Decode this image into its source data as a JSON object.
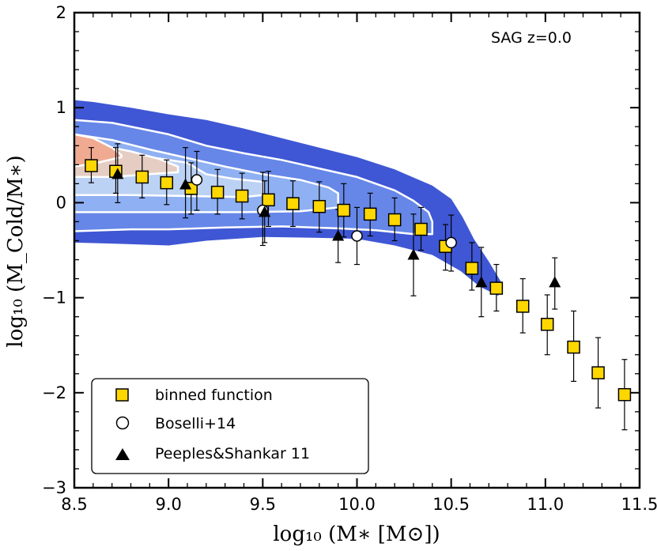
{
  "chart_data": {
    "type": "scatter",
    "annotation": "SAG z=0.0",
    "xlabel": "log₁₀ (M∗ [M⊙])",
    "ylabel": "log₁₀ (M_Cold/M∗)",
    "xlim": [
      8.5,
      11.5
    ],
    "ylim": [
      -3,
      2
    ],
    "x_ticks": [
      "8.5",
      "9.0",
      "9.5",
      "10.0",
      "10.5",
      "11.0",
      "11.5"
    ],
    "y_ticks": [
      "−3",
      "−2",
      "−1",
      "0",
      "1",
      "2"
    ],
    "legend_position": "lower-left",
    "series": [
      {
        "name": "binned function",
        "marker": "square",
        "color": "#ffd700",
        "points": [
          {
            "x": 8.59,
            "y": 0.39,
            "lo": 0.21,
            "hi": 0.58
          },
          {
            "x": 8.72,
            "y": 0.33,
            "lo": 0.1,
            "hi": 0.58
          },
          {
            "x": 8.86,
            "y": 0.27,
            "lo": 0.05,
            "hi": 0.5
          },
          {
            "x": 8.99,
            "y": 0.21,
            "lo": -0.02,
            "hi": 0.45
          },
          {
            "x": 9.12,
            "y": 0.15,
            "lo": -0.12,
            "hi": 0.42
          },
          {
            "x": 9.26,
            "y": 0.11,
            "lo": -0.12,
            "hi": 0.35
          },
          {
            "x": 9.39,
            "y": 0.07,
            "lo": -0.17,
            "hi": 0.31
          },
          {
            "x": 9.53,
            "y": 0.03,
            "lo": -0.25,
            "hi": 0.33
          },
          {
            "x": 9.66,
            "y": -0.01,
            "lo": -0.25,
            "hi": 0.23
          },
          {
            "x": 9.8,
            "y": -0.04,
            "lo": -0.31,
            "hi": 0.22
          },
          {
            "x": 9.93,
            "y": -0.08,
            "lo": -0.36,
            "hi": 0.2
          },
          {
            "x": 10.07,
            "y": -0.12,
            "lo": -0.35,
            "hi": 0.1
          },
          {
            "x": 10.2,
            "y": -0.18,
            "lo": -0.4,
            "hi": 0.05
          },
          {
            "x": 10.34,
            "y": -0.28,
            "lo": -0.5,
            "hi": -0.05
          },
          {
            "x": 10.47,
            "y": -0.46,
            "lo": -0.71,
            "hi": -0.23
          },
          {
            "x": 10.61,
            "y": -0.69,
            "lo": -0.92,
            "hi": -0.42
          },
          {
            "x": 10.74,
            "y": -0.9,
            "lo": -1.14,
            "hi": -0.65
          },
          {
            "x": 10.88,
            "y": -1.09,
            "lo": -1.37,
            "hi": -0.8
          },
          {
            "x": 11.01,
            "y": -1.28,
            "lo": -1.6,
            "hi": -0.97
          },
          {
            "x": 11.15,
            "y": -1.52,
            "lo": -1.88,
            "hi": -1.14
          },
          {
            "x": 11.28,
            "y": -1.79,
            "lo": -2.16,
            "hi": -1.42
          },
          {
            "x": 11.42,
            "y": -2.02,
            "lo": -2.39,
            "hi": -1.65
          }
        ]
      },
      {
        "name": "Boselli+14",
        "marker": "circle",
        "color": "#ffffff",
        "points": [
          {
            "x": 9.15,
            "y": 0.24,
            "lo": -0.08,
            "hi": 0.54
          },
          {
            "x": 9.5,
            "y": -0.08,
            "lo": -0.45,
            "hi": 0.32
          },
          {
            "x": 10.0,
            "y": -0.35,
            "lo": -0.65,
            "hi": -0.05
          },
          {
            "x": 10.5,
            "y": -0.42,
            "lo": -0.72,
            "hi": -0.13
          }
        ]
      },
      {
        "name": "Peeples&Shankar 11",
        "marker": "triangle",
        "color": "#000000",
        "points": [
          {
            "x": 8.73,
            "y": 0.3,
            "lo": 0.0,
            "hi": 0.62
          },
          {
            "x": 9.09,
            "y": 0.19,
            "lo": -0.16,
            "hi": 0.58
          },
          {
            "x": 9.51,
            "y": -0.1,
            "lo": -0.42,
            "hi": 0.23
          },
          {
            "x": 9.9,
            "y": -0.35,
            "lo": -0.63,
            "hi": -0.07
          },
          {
            "x": 10.3,
            "y": -0.55,
            "lo": -0.98,
            "hi": -0.12
          },
          {
            "x": 10.66,
            "y": -0.84,
            "lo": -1.2,
            "hi": -0.47
          },
          {
            "x": 11.05,
            "y": -0.84,
            "lo": -1.12,
            "hi": -0.58
          }
        ]
      }
    ],
    "contours": {
      "colors": [
        "#3f57d4",
        "#6687e8",
        "#8fb0f2",
        "#bcd2f4",
        "#e6cdc4",
        "#f0aa92"
      ],
      "lines_color": "#ffffff",
      "bands": [
        {
          "level": 1,
          "upper": [
            [
              8.5,
              1.08
            ],
            [
              8.6,
              1.06
            ],
            [
              8.8,
              1.0
            ],
            [
              9.0,
              0.93
            ],
            [
              9.2,
              0.87
            ],
            [
              9.4,
              0.78
            ],
            [
              9.6,
              0.68
            ],
            [
              9.8,
              0.58
            ],
            [
              10.0,
              0.48
            ],
            [
              10.2,
              0.35
            ],
            [
              10.4,
              0.18
            ],
            [
              10.5,
              0.04
            ],
            [
              10.56,
              -0.15
            ],
            [
              10.62,
              -0.38
            ],
            [
              10.7,
              -0.62
            ],
            [
              10.77,
              -0.85
            ]
          ],
          "lower": [
            [
              8.5,
              -0.42
            ],
            [
              8.7,
              -0.43
            ],
            [
              9.0,
              -0.45
            ],
            [
              9.2,
              -0.4
            ],
            [
              9.5,
              -0.36
            ],
            [
              9.8,
              -0.37
            ],
            [
              10.0,
              -0.38
            ],
            [
              10.2,
              -0.45
            ],
            [
              10.4,
              -0.55
            ],
            [
              10.55,
              -0.72
            ],
            [
              10.65,
              -0.88
            ],
            [
              10.75,
              -0.98
            ]
          ]
        },
        {
          "level": 2,
          "upper": [
            [
              8.5,
              0.87
            ],
            [
              8.7,
              0.84
            ],
            [
              9.0,
              0.72
            ],
            [
              9.2,
              0.6
            ],
            [
              9.4,
              0.52
            ],
            [
              9.6,
              0.45
            ],
            [
              9.8,
              0.36
            ],
            [
              10.0,
              0.27
            ],
            [
              10.2,
              0.13
            ],
            [
              10.3,
              0.02
            ],
            [
              10.38,
              -0.1
            ],
            [
              10.4,
              -0.2
            ]
          ],
          "lower": [
            [
              8.5,
              -0.3
            ],
            [
              8.8,
              -0.28
            ],
            [
              9.0,
              -0.28
            ],
            [
              9.3,
              -0.26
            ],
            [
              9.6,
              -0.25
            ],
            [
              9.9,
              -0.27
            ],
            [
              10.1,
              -0.29
            ],
            [
              10.3,
              -0.33
            ],
            [
              10.4,
              -0.33
            ]
          ]
        },
        {
          "level": 3,
          "upper": [
            [
              8.5,
              0.72
            ],
            [
              8.7,
              0.66
            ],
            [
              8.9,
              0.56
            ],
            [
              9.1,
              0.47
            ],
            [
              9.3,
              0.38
            ],
            [
              9.5,
              0.3
            ],
            [
              9.7,
              0.24
            ],
            [
              9.85,
              0.16
            ],
            [
              9.9,
              0.1
            ]
          ],
          "lower": [
            [
              8.5,
              -0.1
            ],
            [
              8.8,
              -0.1
            ],
            [
              9.1,
              -0.1
            ],
            [
              9.4,
              -0.1
            ],
            [
              9.7,
              -0.09
            ],
            [
              9.9,
              -0.05
            ]
          ]
        },
        {
          "level": 4,
          "upper": [
            [
              8.5,
              0.63
            ],
            [
              8.7,
              0.58
            ],
            [
              8.9,
              0.48
            ],
            [
              9.1,
              0.42
            ],
            [
              9.2,
              0.3
            ],
            [
              9.35,
              0.25
            ],
            [
              9.5,
              0.22
            ]
          ],
          "lower": [
            [
              8.5,
              0.08
            ],
            [
              8.8,
              0.08
            ],
            [
              9.1,
              0.07
            ],
            [
              9.4,
              0.06
            ],
            [
              9.5,
              0.08
            ]
          ]
        },
        {
          "level": 5,
          "upper": [
            [
              8.5,
              0.62
            ],
            [
              8.6,
              0.62
            ],
            [
              8.8,
              0.54
            ],
            [
              8.95,
              0.46
            ],
            [
              9.05,
              0.38
            ]
          ],
          "lower": [
            [
              8.5,
              0.27
            ],
            [
              8.7,
              0.27
            ],
            [
              8.9,
              0.3
            ],
            [
              9.05,
              0.32
            ]
          ]
        },
        {
          "level": 6,
          "upper": [
            [
              8.5,
              0.72
            ],
            [
              8.6,
              0.68
            ],
            [
              8.7,
              0.58
            ],
            [
              8.75,
              0.5
            ]
          ],
          "lower": [
            [
              8.5,
              0.38
            ],
            [
              8.6,
              0.41
            ],
            [
              8.75,
              0.48
            ]
          ]
        }
      ]
    }
  }
}
